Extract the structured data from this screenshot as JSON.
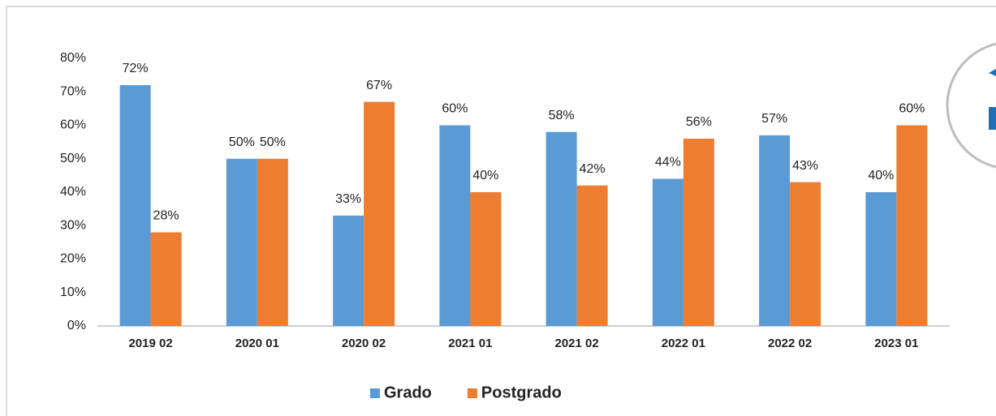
{
  "chart_data": {
    "type": "bar",
    "categories": [
      "2019 02",
      "2020 01",
      "2020 02",
      "2021 01",
      "2021 02",
      "2022 01",
      "2022 02",
      "2023 01"
    ],
    "series": [
      {
        "name": "Grado",
        "color": "#5b9bd5",
        "values": [
          72,
          50,
          33,
          60,
          58,
          44,
          57,
          40
        ],
        "value_labels": [
          "72%",
          "50%",
          "33%",
          "60%",
          "58%",
          "44%",
          "57%",
          "40%"
        ]
      },
      {
        "name": "Postgrado",
        "color": "#ed7d31",
        "values": [
          28,
          50,
          67,
          40,
          42,
          56,
          43,
          60
        ],
        "value_labels": [
          "28%",
          "50%",
          "67%",
          "40%",
          "42%",
          "56%",
          "43%",
          "60%"
        ]
      }
    ],
    "ylim": [
      0,
      80
    ],
    "yticks": [
      {
        "value": 0,
        "label": "0%"
      },
      {
        "value": 10,
        "label": "10%"
      },
      {
        "value": 20,
        "label": "20%"
      },
      {
        "value": 30,
        "label": "30%"
      },
      {
        "value": 40,
        "label": "40%"
      },
      {
        "value": 50,
        "label": "50%"
      },
      {
        "value": 60,
        "label": "60%"
      },
      {
        "value": 70,
        "label": "70%"
      },
      {
        "value": 80,
        "label": "80%"
      }
    ],
    "grid": false,
    "legend": "bottom"
  }
}
